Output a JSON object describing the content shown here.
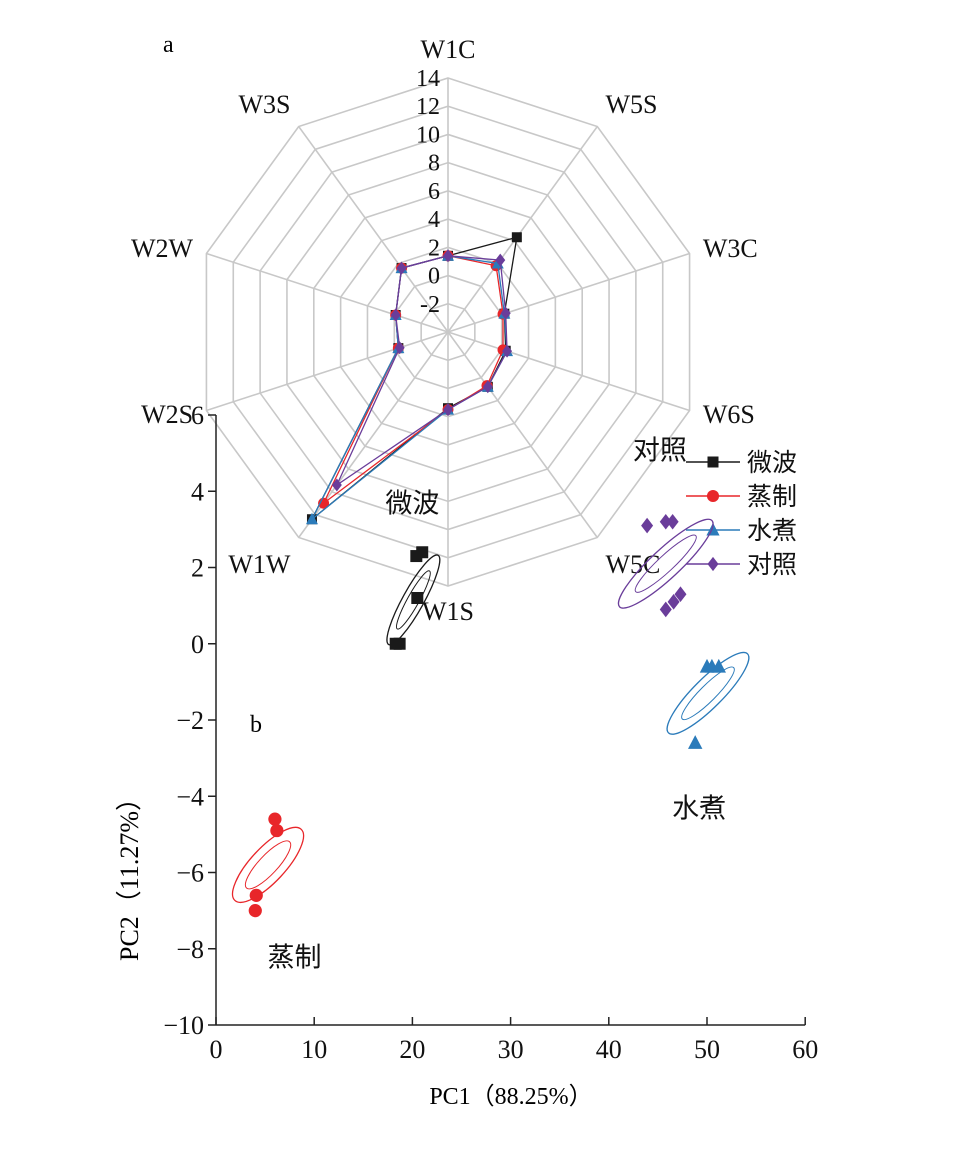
{
  "chart_data": [
    {
      "type": "radar",
      "panel_label": "a",
      "axes": [
        "W1C",
        "W5S",
        "W3C",
        "W6S",
        "W5C",
        "W1S",
        "W1W",
        "W2S",
        "W2W",
        "W3S"
      ],
      "r_range": [
        -4,
        14
      ],
      "r_ticks": [
        14,
        12,
        10,
        8,
        6,
        4,
        2,
        0,
        -2
      ],
      "r_tick_labels": [
        "14",
        "12",
        "10",
        "8",
        "6",
        "4",
        "2",
        "0",
        "-2"
      ],
      "grid": true,
      "legend_position": "right",
      "series": [
        {
          "name": "微波",
          "color": "#1a1a1a",
          "marker": "square",
          "values": [
            1.4,
            4.3,
            0.2,
            0.3,
            0.8,
            1.4,
            12.4,
            -0.3,
            -0.1,
            1.6
          ]
        },
        {
          "name": "蒸制",
          "color": "#e8262a",
          "marker": "circle",
          "values": [
            1.4,
            1.8,
            0.1,
            0.1,
            0.7,
            1.5,
            11.0,
            -0.3,
            -0.1,
            1.6
          ]
        },
        {
          "name": "水煮",
          "color": "#2b7bba",
          "marker": "triangle",
          "values": [
            1.4,
            2.0,
            0.2,
            0.4,
            0.8,
            1.5,
            12.4,
            -0.3,
            -0.1,
            1.6
          ]
        },
        {
          "name": "对照",
          "color": "#6a3d9a",
          "marker": "diamond",
          "values": [
            1.4,
            2.3,
            0.3,
            0.4,
            0.8,
            1.5,
            9.4,
            -0.4,
            -0.1,
            1.6
          ]
        }
      ]
    },
    {
      "type": "scatter",
      "panel_label": "b",
      "xlabel": "PC1（88.25%）",
      "ylabel": "PC2（11.27%）",
      "xlim": [
        0,
        60
      ],
      "ylim": [
        -10,
        6
      ],
      "x_ticks": [
        0,
        10,
        20,
        30,
        40,
        50,
        60
      ],
      "x_tick_labels": [
        "0",
        "10",
        "20",
        "30",
        "40",
        "50",
        "60"
      ],
      "y_ticks": [
        6,
        4,
        2,
        0,
        -2,
        -4,
        -6,
        -8,
        -10
      ],
      "y_tick_labels": [
        "6",
        "4",
        "2",
        "0",
        "−2",
        "−4",
        "−6",
        "−8",
        "−10"
      ],
      "grid": false,
      "series": [
        {
          "name": "微波",
          "color": "#1a1a1a",
          "marker": "square",
          "points": [
            [
              18.3,
              0.0
            ],
            [
              18.7,
              0.0
            ],
            [
              20.4,
              2.3
            ],
            [
              21.0,
              2.4
            ],
            [
              20.5,
              1.2
            ]
          ],
          "ellipse": {
            "center": [
              20.1,
              1.15
            ],
            "radius_x": 1.6,
            "radius_y": 2.1,
            "angle_deg": 29
          },
          "label": "微波",
          "label_at": [
            20.0,
            3.7
          ]
        },
        {
          "name": "蒸制",
          "color": "#e8262a",
          "marker": "circle",
          "points": [
            [
              6.0,
              -4.6
            ],
            [
              6.2,
              -4.9
            ],
            [
              4.1,
              -6.6
            ],
            [
              4.0,
              -7.0
            ]
          ],
          "ellipse": {
            "center": [
              5.3,
              -5.8
            ],
            "radius_x": 2.6,
            "radius_y": 2.0,
            "angle_deg": 43
          },
          "label": "蒸制",
          "label_at": [
            8.0,
            -8.2
          ]
        },
        {
          "name": "对照",
          "color": "#6a3d9a",
          "marker": "diamond",
          "points": [
            [
              43.9,
              3.1
            ],
            [
              45.8,
              3.2
            ],
            [
              46.5,
              3.2
            ],
            [
              45.8,
              0.9
            ],
            [
              46.6,
              1.1
            ],
            [
              47.3,
              1.3
            ]
          ],
          "ellipse": {
            "center": [
              45.8,
              2.1
            ],
            "radius_x": 2.2,
            "radius_y": 2.6,
            "angle_deg": 47
          },
          "label": "对照",
          "label_at": [
            45.2,
            5.1
          ]
        },
        {
          "name": "水煮",
          "color": "#2b7bba",
          "marker": "triangle",
          "points": [
            [
              50.0,
              -0.6
            ],
            [
              50.5,
              -0.6
            ],
            [
              51.2,
              -0.6
            ],
            [
              48.8,
              -2.6
            ]
          ],
          "ellipse": {
            "center": [
              50.1,
              -1.3
            ],
            "radius_x": 2.2,
            "radius_y": 2.3,
            "angle_deg": 45
          },
          "label": "水煮",
          "label_at": [
            49.2,
            -4.3
          ]
        }
      ]
    }
  ]
}
